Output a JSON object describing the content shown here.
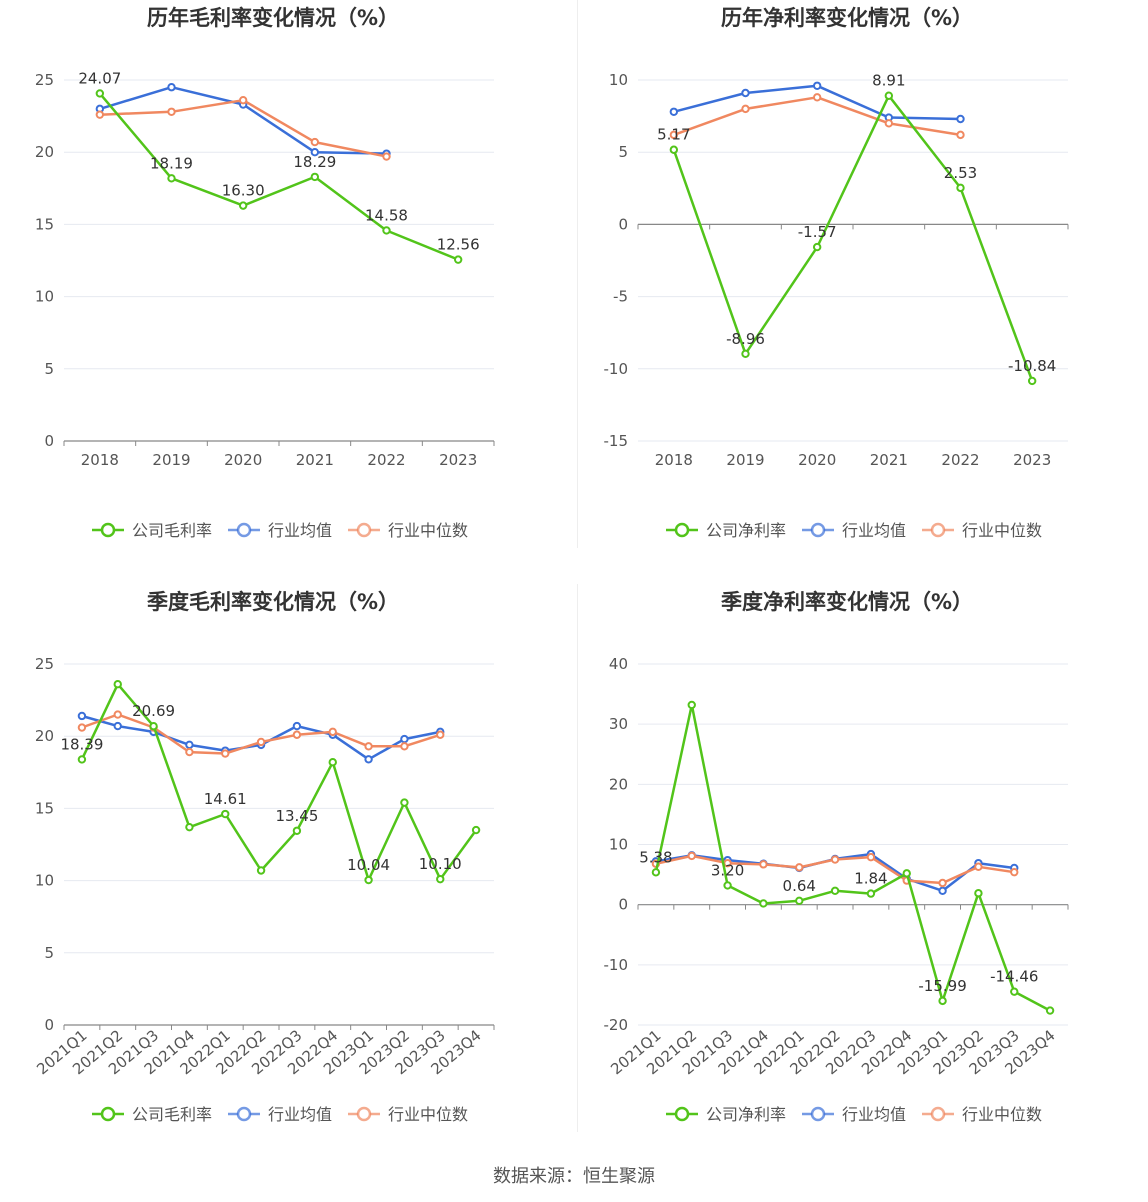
{
  "legend": {
    "series_industry_avg": "行业均值",
    "series_industry_median": "行业中位数"
  },
  "colors": {
    "company": "#52c41a",
    "industry_avg": "#3a6fd8",
    "industry_median": "#f08860",
    "grid": "#e6e9f0",
    "axis": "#888888",
    "label": "#555555"
  },
  "source": "数据来源：恒生聚源",
  "chart_data": [
    {
      "type": "line",
      "title": "历年毛利率变化情况（%）",
      "categories": [
        "2018",
        "2019",
        "2020",
        "2021",
        "2022",
        "2023"
      ],
      "ylim": [
        0,
        25
      ],
      "yticks": [
        0,
        5,
        10,
        15,
        20,
        25
      ],
      "rotate_x": false,
      "legend_company": "公司毛利率",
      "series": [
        {
          "name": "公司毛利率",
          "values": [
            24.07,
            18.19,
            16.3,
            18.29,
            14.58,
            12.56
          ]
        },
        {
          "name": "行业均值",
          "values": [
            23.0,
            24.5,
            23.3,
            20.0,
            19.9,
            null
          ]
        },
        {
          "name": "行业中位数",
          "values": [
            22.6,
            22.8,
            23.6,
            20.7,
            19.7,
            null
          ]
        }
      ],
      "labels": [
        {
          "i": 0,
          "text": "24.07"
        },
        {
          "i": 1,
          "text": "18.19"
        },
        {
          "i": 2,
          "text": "16.30"
        },
        {
          "i": 3,
          "text": "18.29"
        },
        {
          "i": 4,
          "text": "14.58"
        },
        {
          "i": 5,
          "text": "12.56"
        }
      ]
    },
    {
      "type": "line",
      "title": "历年净利率变化情况（%）",
      "categories": [
        "2018",
        "2019",
        "2020",
        "2021",
        "2022",
        "2023"
      ],
      "ylim": [
        -15,
        10
      ],
      "yticks": [
        -15,
        -10,
        -5,
        0,
        5,
        10
      ],
      "rotate_x": false,
      "legend_company": "公司净利率",
      "series": [
        {
          "name": "公司净利率",
          "values": [
            5.17,
            -8.96,
            -1.57,
            8.91,
            2.53,
            -10.84
          ]
        },
        {
          "name": "行业均值",
          "values": [
            7.8,
            9.1,
            9.6,
            7.4,
            7.3,
            null
          ]
        },
        {
          "name": "行业中位数",
          "values": [
            6.2,
            8.0,
            8.8,
            7.0,
            6.2,
            null
          ]
        }
      ],
      "labels": [
        {
          "i": 0,
          "text": "5.17"
        },
        {
          "i": 1,
          "text": "-8.96"
        },
        {
          "i": 2,
          "text": "-1.57"
        },
        {
          "i": 3,
          "text": "8.91"
        },
        {
          "i": 4,
          "text": "2.53"
        },
        {
          "i": 5,
          "text": "-10.84"
        }
      ]
    },
    {
      "type": "line",
      "title": "季度毛利率变化情况（%）",
      "categories": [
        "2021Q1",
        "2021Q2",
        "2021Q3",
        "2021Q4",
        "2022Q1",
        "2022Q2",
        "2022Q3",
        "2022Q4",
        "2023Q1",
        "2023Q2",
        "2023Q3",
        "2023Q4"
      ],
      "ylim": [
        0,
        25
      ],
      "yticks": [
        0,
        5,
        10,
        15,
        20,
        25
      ],
      "rotate_x": true,
      "legend_company": "公司毛利率",
      "series": [
        {
          "name": "公司毛利率",
          "values": [
            18.39,
            23.6,
            20.69,
            13.7,
            14.61,
            10.7,
            13.45,
            18.2,
            10.04,
            15.4,
            10.1,
            13.5
          ]
        },
        {
          "name": "行业均值",
          "values": [
            21.4,
            20.7,
            20.3,
            19.4,
            19.0,
            19.4,
            20.7,
            20.1,
            18.4,
            19.8,
            20.3,
            null
          ]
        },
        {
          "name": "行业中位数",
          "values": [
            20.6,
            21.5,
            20.6,
            18.9,
            18.8,
            19.6,
            20.1,
            20.3,
            19.3,
            19.3,
            20.1,
            null
          ]
        }
      ],
      "labels": [
        {
          "i": 0,
          "text": "18.39"
        },
        {
          "i": 2,
          "text": "20.69"
        },
        {
          "i": 4,
          "text": "14.61"
        },
        {
          "i": 6,
          "text": "13.45"
        },
        {
          "i": 8,
          "text": "10.04"
        },
        {
          "i": 10,
          "text": "10.10"
        }
      ]
    },
    {
      "type": "line",
      "title": "季度净利率变化情况（%）",
      "categories": [
        "2021Q1",
        "2021Q2",
        "2021Q3",
        "2021Q4",
        "2022Q1",
        "2022Q2",
        "2022Q3",
        "2022Q4",
        "2023Q1",
        "2023Q2",
        "2023Q3",
        "2023Q4"
      ],
      "ylim": [
        -20,
        40
      ],
      "yticks": [
        -20,
        -10,
        0,
        10,
        20,
        30,
        40
      ],
      "rotate_x": true,
      "legend_company": "公司净利率",
      "series": [
        {
          "name": "公司净利率",
          "values": [
            5.38,
            33.2,
            3.2,
            0.2,
            0.64,
            2.3,
            1.84,
            5.2,
            -15.99,
            1.9,
            -14.46,
            -17.6
          ]
        },
        {
          "name": "行业均值",
          "values": [
            7.2,
            8.2,
            7.4,
            6.8,
            6.1,
            7.6,
            8.4,
            4.3,
            2.3,
            6.9,
            6.1,
            null
          ]
        },
        {
          "name": "行业中位数",
          "values": [
            6.8,
            8.1,
            6.9,
            6.7,
            6.2,
            7.5,
            7.9,
            4.0,
            3.6,
            6.3,
            5.4,
            null
          ]
        }
      ],
      "labels": [
        {
          "i": 0,
          "text": "5.38"
        },
        {
          "i": 2,
          "text": "3.20"
        },
        {
          "i": 4,
          "text": "0.64"
        },
        {
          "i": 6,
          "text": "1.84"
        },
        {
          "i": 8,
          "text": "-15.99"
        },
        {
          "i": 10,
          "text": "-14.46"
        }
      ]
    }
  ]
}
